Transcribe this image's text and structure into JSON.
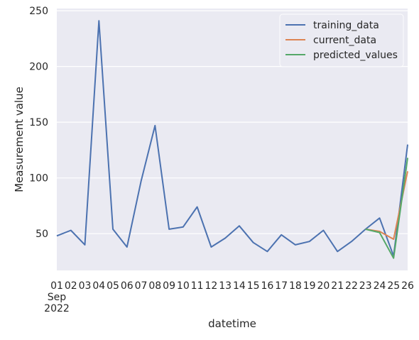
{
  "chart_data": {
    "type": "line",
    "xlabel": "datetime",
    "ylabel": "Measurement value",
    "ylim": [
      17,
      252
    ],
    "xlim": [
      1,
      26
    ],
    "yticks": [
      50,
      100,
      150,
      200,
      250
    ],
    "xtick_labels": [
      {
        "day": 1,
        "lines": [
          "01",
          "Sep",
          "2022"
        ]
      },
      {
        "day": 2,
        "lines": [
          "02"
        ]
      },
      {
        "day": 3,
        "lines": [
          "03"
        ]
      },
      {
        "day": 4,
        "lines": [
          "04"
        ]
      },
      {
        "day": 5,
        "lines": [
          "05"
        ]
      },
      {
        "day": 6,
        "lines": [
          "06"
        ]
      },
      {
        "day": 7,
        "lines": [
          "07"
        ]
      },
      {
        "day": 8,
        "lines": [
          "08"
        ]
      },
      {
        "day": 9,
        "lines": [
          "09"
        ]
      },
      {
        "day": 10,
        "lines": [
          "10"
        ]
      },
      {
        "day": 11,
        "lines": [
          "11"
        ]
      },
      {
        "day": 12,
        "lines": [
          "12"
        ]
      },
      {
        "day": 13,
        "lines": [
          "13"
        ]
      },
      {
        "day": 14,
        "lines": [
          "14"
        ]
      },
      {
        "day": 15,
        "lines": [
          "15"
        ]
      },
      {
        "day": 16,
        "lines": [
          "16"
        ]
      },
      {
        "day": 17,
        "lines": [
          "17"
        ]
      },
      {
        "day": 18,
        "lines": [
          "18"
        ]
      },
      {
        "day": 19,
        "lines": [
          "19"
        ]
      },
      {
        "day": 20,
        "lines": [
          "20"
        ]
      },
      {
        "day": 21,
        "lines": [
          "21"
        ]
      },
      {
        "day": 22,
        "lines": [
          "22"
        ]
      },
      {
        "day": 23,
        "lines": [
          "23"
        ]
      },
      {
        "day": 24,
        "lines": [
          "24"
        ]
      },
      {
        "day": 25,
        "lines": [
          "25"
        ]
      },
      {
        "day": 26,
        "lines": [
          "26"
        ]
      }
    ],
    "series": [
      {
        "name": "training_data",
        "color": "#4c72b0",
        "x": [
          1,
          2,
          3,
          4,
          5,
          6,
          7,
          8,
          9,
          10,
          11,
          12,
          13,
          14,
          15,
          16,
          17,
          18,
          19,
          20,
          21,
          22,
          23,
          24,
          25,
          26
        ],
        "y": [
          48,
          53,
          40,
          241,
          54,
          38,
          97,
          147,
          54,
          56,
          74,
          38,
          46,
          57,
          42,
          34,
          49,
          40,
          43,
          53,
          34,
          43,
          54,
          64,
          30,
          130
        ]
      },
      {
        "name": "current_data",
        "color": "#dd8452",
        "x": [
          23,
          24,
          25,
          26
        ],
        "y": [
          54,
          52,
          45,
          106
        ]
      },
      {
        "name": "predicted_values",
        "color": "#55a868",
        "x": [
          23,
          24,
          25,
          26
        ],
        "y": [
          54,
          51,
          28,
          118
        ]
      }
    ],
    "legend_position": "top-right",
    "grid": true
  }
}
